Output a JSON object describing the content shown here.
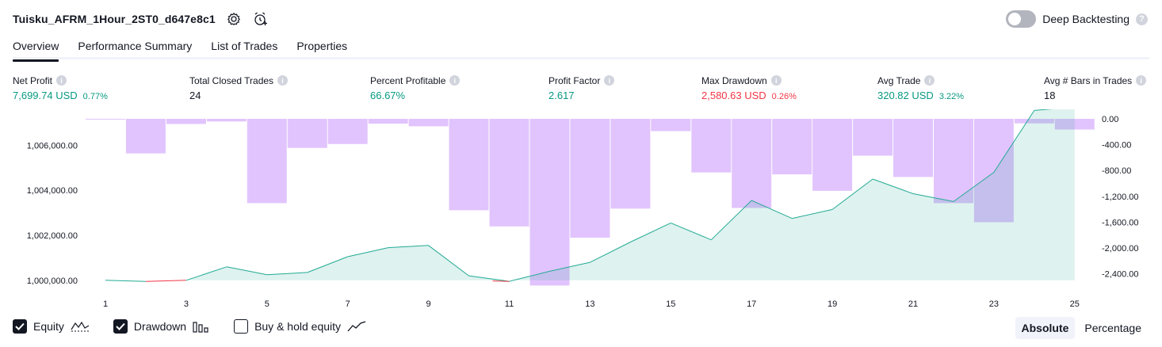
{
  "header": {
    "title": "Tuisku_AFRM_1Hour_2ST0_d647e8c1",
    "deep_backtesting_label": "Deep Backtesting",
    "deep_backtesting_enabled": false
  },
  "tabs": [
    {
      "label": "Overview",
      "active": true
    },
    {
      "label": "Performance Summary",
      "active": false
    },
    {
      "label": "List of Trades",
      "active": false
    },
    {
      "label": "Properties",
      "active": false
    }
  ],
  "metrics": [
    {
      "label": "Net Profit",
      "value": "7,699.74 USD",
      "pct": "0.77%",
      "color": "green"
    },
    {
      "label": "Total Closed Trades",
      "value": "24",
      "pct": "",
      "color": "dark"
    },
    {
      "label": "Percent Profitable",
      "value": "66.67%",
      "pct": "",
      "color": "green"
    },
    {
      "label": "Profit Factor",
      "value": "2.617",
      "pct": "",
      "color": "green"
    },
    {
      "label": "Max Drawdown",
      "value": "2,580.63 USD",
      "pct": "0.26%",
      "color": "red"
    },
    {
      "label": "Avg Trade",
      "value": "320.82 USD",
      "pct": "3.22%",
      "color": "green"
    },
    {
      "label": "Avg # Bars in Trades",
      "value": "18",
      "pct": "",
      "color": "dark"
    }
  ],
  "legend": {
    "equity_label": "Equity",
    "equity_checked": true,
    "drawdown_label": "Drawdown",
    "drawdown_checked": true,
    "buyhold_label": "Buy & hold equity",
    "buyhold_checked": false
  },
  "mode": {
    "absolute_label": "Absolute",
    "percentage_label": "Percentage",
    "active": "absolute"
  },
  "colors": {
    "equity_line": "#22ab94",
    "equity_fill": "#22ab94",
    "equity_negative": "#f23645",
    "drawdown_bar": "#e1c4fd",
    "text_green": "#089981",
    "text_red": "#f23645"
  },
  "chart_data": {
    "type": "area",
    "x_ticks": [
      "1",
      "3",
      "5",
      "7",
      "9",
      "11",
      "13",
      "15",
      "17",
      "19",
      "21",
      "23",
      "25"
    ],
    "equity_axis": {
      "ticks": [
        1000000,
        1002000,
        1004000,
        1006000
      ],
      "tick_labels": [
        "1,000,000.00",
        "1,002,000.00",
        "1,004,000.00",
        "1,006,000.00"
      ],
      "range": [
        999500,
        1007600
      ]
    },
    "drawdown_axis": {
      "ticks": [
        0,
        -400,
        -800,
        -1200,
        -1600,
        -2000,
        -2400
      ],
      "tick_labels": [
        "0.00",
        "-400.00",
        "-800.00",
        "-1,200.00",
        "-1,600.00",
        "-2,000.00",
        "-2,400.00"
      ],
      "range": [
        -2600,
        0
      ]
    },
    "series": [
      {
        "name": "Equity",
        "x": [
          1,
          2,
          3,
          4,
          5,
          6,
          7,
          8,
          9,
          10,
          11,
          12,
          13,
          14,
          15,
          16,
          17,
          18,
          19,
          20,
          21,
          22,
          23,
          24,
          25
        ],
        "values": [
          1000000,
          999950,
          1000000,
          1000600,
          1000250,
          1000350,
          1001050,
          1001450,
          1001550,
          1000200,
          999950,
          1000400,
          1000800,
          1001700,
          1002550,
          1001800,
          1003550,
          1002750,
          1003150,
          1004500,
          1003850,
          1003500,
          1004800,
          1007550,
          1007700
        ]
      },
      {
        "name": "Drawdown",
        "x": [
          1,
          2,
          3,
          4,
          5,
          6,
          7,
          8,
          9,
          10,
          11,
          12,
          13,
          14,
          15,
          16,
          17,
          18,
          19,
          20,
          21,
          22,
          23,
          24,
          25
        ],
        "values": [
          -10,
          -535,
          -80,
          -40,
          -1305,
          -450,
          -390,
          -75,
          -115,
          -1415,
          -1665,
          -2580,
          -1840,
          -1390,
          -190,
          -830,
          -1380,
          -860,
          -1115,
          -570,
          -900,
          -1305,
          -1600,
          -70,
          -165
        ]
      }
    ]
  }
}
